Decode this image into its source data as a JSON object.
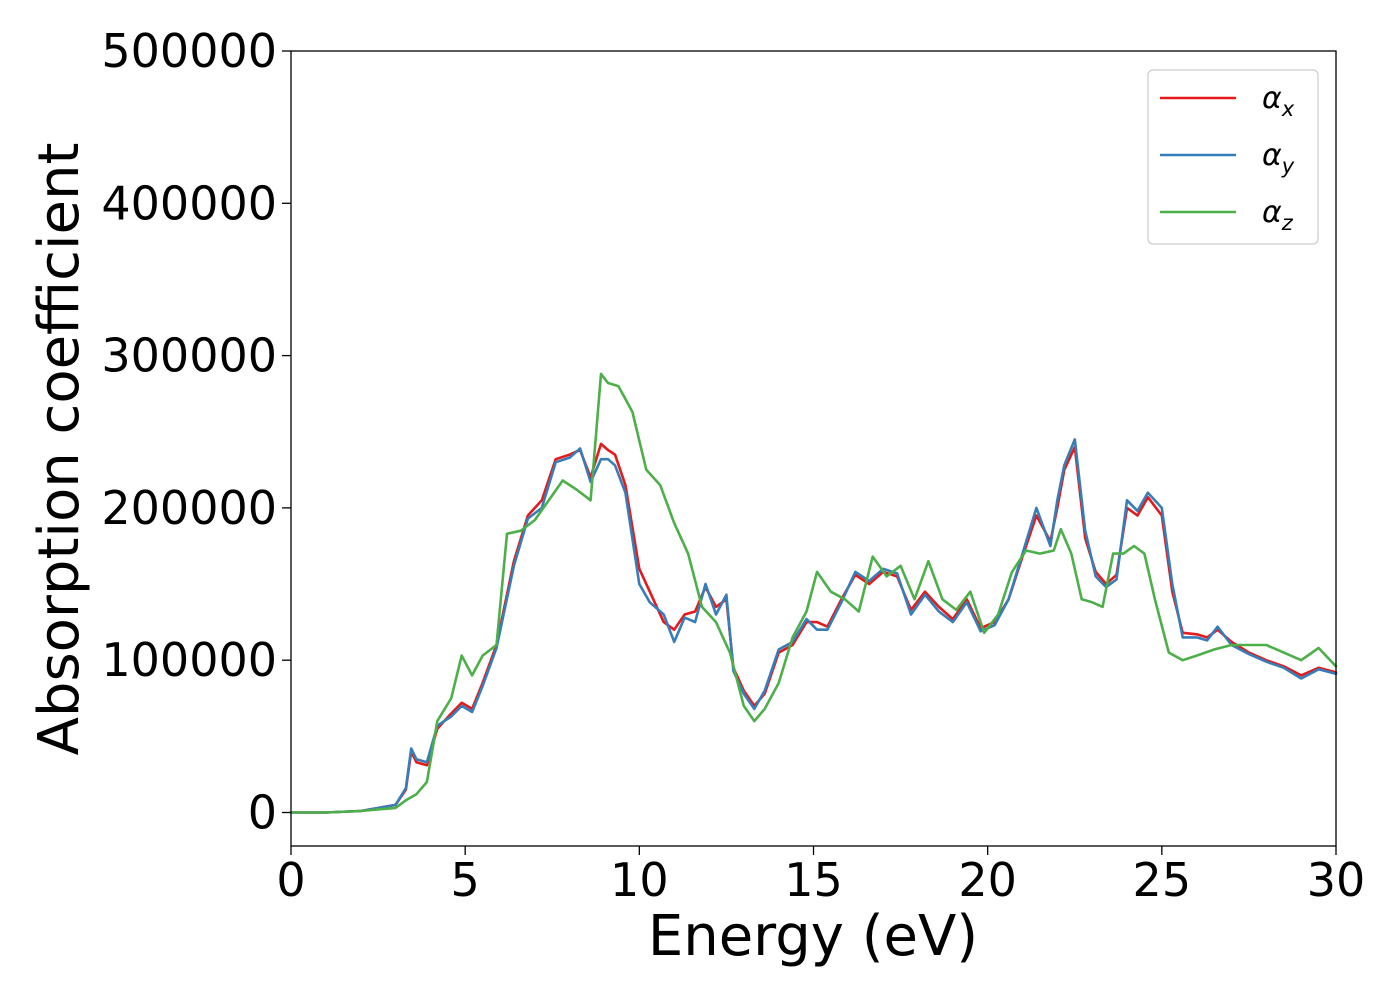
{
  "chart_data": {
    "type": "line",
    "title": "",
    "xlabel": "Energy (eV)",
    "ylabel": "Absorption coefficient",
    "xlim": [
      0,
      30
    ],
    "ylim": [
      -22000,
      500000
    ],
    "xticks": [
      0,
      5,
      10,
      15,
      20,
      25,
      30
    ],
    "yticks": [
      0,
      100000,
      200000,
      300000,
      400000,
      500000
    ],
    "grid": false,
    "legend_position": "top-right",
    "series": [
      {
        "name": "αx",
        "legend_main": "α",
        "legend_sub": "x",
        "color": "#e41a1c",
        "x": [
          0,
          1,
          2,
          3,
          3.3,
          3.45,
          3.6,
          3.9,
          4.2,
          4.6,
          4.9,
          5.2,
          5.5,
          5.9,
          6.4,
          6.8,
          7.2,
          7.6,
          8.0,
          8.3,
          8.6,
          8.9,
          9.1,
          9.3,
          9.6,
          10.0,
          10.3,
          10.7,
          11.0,
          11.3,
          11.6,
          11.9,
          12.2,
          12.5,
          12.7,
          13.0,
          13.3,
          13.6,
          14.0,
          14.4,
          14.8,
          15.1,
          15.4,
          15.8,
          16.2,
          16.6,
          17.0,
          17.4,
          17.8,
          18.2,
          18.6,
          19.0,
          19.4,
          19.8,
          20.2,
          20.6,
          21.0,
          21.4,
          21.8,
          22.0,
          22.2,
          22.5,
          22.8,
          23.1,
          23.4,
          23.7,
          24.0,
          24.3,
          24.6,
          25.0,
          25.3,
          25.6,
          26.0,
          26.3,
          26.6,
          27.0,
          27.5,
          28.0,
          28.5,
          29.0,
          29.5,
          30.0
        ],
        "y": [
          0,
          0,
          1000,
          5000,
          15000,
          40000,
          33000,
          31000,
          55000,
          65000,
          72000,
          68000,
          85000,
          110000,
          165000,
          195000,
          205000,
          232000,
          235000,
          238000,
          220000,
          242000,
          238000,
          235000,
          215000,
          160000,
          145000,
          125000,
          120000,
          130000,
          132000,
          148000,
          135000,
          140000,
          95000,
          80000,
          70000,
          78000,
          105000,
          110000,
          125000,
          125000,
          122000,
          140000,
          156000,
          150000,
          158000,
          155000,
          133000,
          145000,
          135000,
          127000,
          140000,
          121000,
          125000,
          140000,
          168000,
          195000,
          178000,
          200000,
          225000,
          240000,
          180000,
          158000,
          150000,
          156000,
          200000,
          195000,
          207000,
          195000,
          145000,
          118000,
          117000,
          115000,
          120000,
          112000,
          105000,
          100000,
          96000,
          90000,
          95000,
          92000
        ]
      },
      {
        "name": "αy",
        "legend_main": "α",
        "legend_sub": "y",
        "color": "#377eb8",
        "x": [
          0,
          1,
          2,
          3,
          3.3,
          3.45,
          3.6,
          3.9,
          4.2,
          4.6,
          4.9,
          5.2,
          5.5,
          5.9,
          6.4,
          6.8,
          7.2,
          7.6,
          8.0,
          8.3,
          8.6,
          8.9,
          9.1,
          9.3,
          9.6,
          10.0,
          10.3,
          10.7,
          11.0,
          11.3,
          11.6,
          11.9,
          12.2,
          12.5,
          12.7,
          13.0,
          13.3,
          13.6,
          14.0,
          14.4,
          14.8,
          15.1,
          15.4,
          15.8,
          16.2,
          16.6,
          17.0,
          17.4,
          17.8,
          18.2,
          18.6,
          19.0,
          19.4,
          19.8,
          20.2,
          20.6,
          21.0,
          21.4,
          21.8,
          22.0,
          22.2,
          22.5,
          22.8,
          23.1,
          23.4,
          23.7,
          24.0,
          24.3,
          24.6,
          25.0,
          25.3,
          25.6,
          26.0,
          26.3,
          26.6,
          27.0,
          27.5,
          28.0,
          28.5,
          29.0,
          29.5,
          30.0
        ],
        "y": [
          0,
          0,
          1000,
          5000,
          16000,
          42000,
          35000,
          33000,
          57000,
          63000,
          70000,
          66000,
          83000,
          108000,
          162000,
          193000,
          200000,
          230000,
          233000,
          239000,
          217000,
          232000,
          232000,
          228000,
          210000,
          150000,
          138000,
          130000,
          112000,
          128000,
          125000,
          150000,
          130000,
          143000,
          93000,
          78000,
          68000,
          80000,
          107000,
          112000,
          127000,
          120000,
          120000,
          138000,
          158000,
          152000,
          160000,
          157000,
          130000,
          143000,
          132000,
          125000,
          138000,
          119000,
          123000,
          140000,
          170000,
          200000,
          175000,
          205000,
          228000,
          245000,
          185000,
          155000,
          148000,
          153000,
          205000,
          198000,
          210000,
          200000,
          150000,
          115000,
          115000,
          113000,
          122000,
          110000,
          104000,
          99000,
          95000,
          88000,
          94000,
          91000
        ]
      },
      {
        "name": "αz",
        "legend_main": "α",
        "legend_sub": "z",
        "color": "#4daf4a",
        "x": [
          0,
          1,
          2,
          3,
          3.3,
          3.6,
          3.9,
          4.2,
          4.6,
          4.9,
          5.2,
          5.5,
          5.9,
          6.2,
          6.6,
          7.0,
          7.4,
          7.8,
          8.2,
          8.6,
          8.9,
          9.1,
          9.4,
          9.8,
          10.2,
          10.6,
          11.0,
          11.4,
          11.8,
          12.2,
          12.6,
          13.0,
          13.3,
          13.6,
          14.0,
          14.4,
          14.8,
          15.1,
          15.5,
          15.9,
          16.3,
          16.7,
          17.1,
          17.5,
          17.9,
          18.3,
          18.7,
          19.1,
          19.5,
          19.9,
          20.3,
          20.7,
          21.1,
          21.5,
          21.9,
          22.1,
          22.4,
          22.7,
          23.0,
          23.3,
          23.6,
          23.9,
          24.2,
          24.5,
          24.8,
          25.2,
          25.6,
          26.0,
          26.5,
          27.0,
          27.5,
          28.0,
          28.5,
          29.0,
          29.5,
          30.0
        ],
        "y": [
          0,
          0,
          1000,
          3000,
          8000,
          12000,
          20000,
          60000,
          75000,
          103000,
          90000,
          103000,
          110000,
          183000,
          185000,
          192000,
          205000,
          218000,
          212000,
          205000,
          288000,
          282000,
          280000,
          263000,
          225000,
          215000,
          190000,
          170000,
          135000,
          125000,
          105000,
          70000,
          60000,
          68000,
          85000,
          115000,
          132000,
          158000,
          145000,
          140000,
          132000,
          168000,
          155000,
          162000,
          140000,
          165000,
          140000,
          133000,
          145000,
          118000,
          130000,
          158000,
          172000,
          170000,
          172000,
          186000,
          170000,
          140000,
          138000,
          135000,
          170000,
          170000,
          175000,
          170000,
          140000,
          105000,
          100000,
          103000,
          107000,
          110000,
          110000,
          110000,
          105000,
          100000,
          108000,
          96000
        ]
      }
    ]
  }
}
